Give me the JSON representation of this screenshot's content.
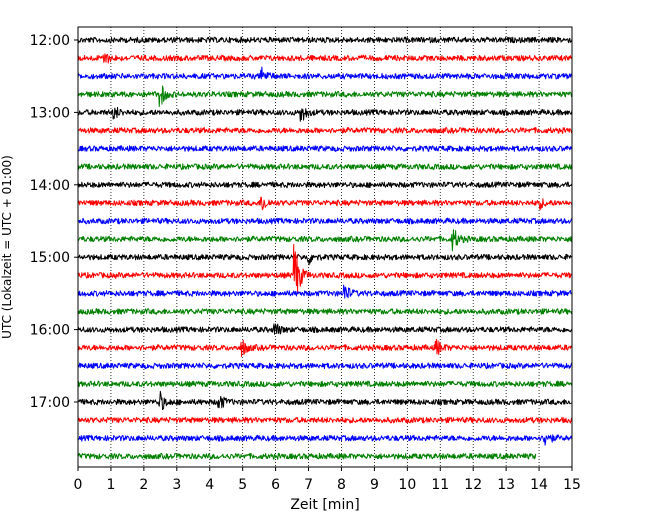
{
  "chart_data": {
    "type": "line",
    "title": "",
    "xlabel": "Zeit  [min]",
    "ylabel": "UTC (Lokalzeit = UTC + 01:00)",
    "xlim": [
      0,
      15
    ],
    "xticks": [
      0,
      1,
      2,
      3,
      4,
      5,
      6,
      7,
      8,
      9,
      10,
      11,
      12,
      13,
      14,
      15
    ],
    "xtick_labels": [
      "0",
      "1",
      "2",
      "3",
      "4",
      "5",
      "6",
      "7",
      "8",
      "9",
      "10",
      "11",
      "12",
      "13",
      "14",
      "15"
    ],
    "ytick_labels": [
      "12:00",
      "13:00",
      "14:00",
      "15:00",
      "16:00",
      "17:00"
    ],
    "grid": "vertical-dotted",
    "legend": "none",
    "colors": [
      "#000000",
      "#ff0000",
      "#0000ff",
      "#008000"
    ],
    "traces": [
      {
        "start": "12:00",
        "events": []
      },
      {
        "start": "12:15",
        "events": [
          {
            "t": 0.8,
            "amp": 0.35
          }
        ]
      },
      {
        "start": "12:30",
        "events": [
          {
            "t": 5.6,
            "amp": 0.4
          }
        ]
      },
      {
        "start": "12:45",
        "events": [
          {
            "t": 2.5,
            "amp": 0.65
          }
        ]
      },
      {
        "start": "13:00",
        "events": [
          {
            "t": 1.1,
            "amp": 0.35
          },
          {
            "t": 6.8,
            "amp": 0.45
          }
        ]
      },
      {
        "start": "13:15",
        "events": []
      },
      {
        "start": "13:30",
        "events": []
      },
      {
        "start": "13:45",
        "events": []
      },
      {
        "start": "14:00",
        "events": []
      },
      {
        "start": "14:15",
        "events": [
          {
            "t": 5.6,
            "amp": 0.45
          },
          {
            "t": 14.0,
            "amp": 0.3
          }
        ]
      },
      {
        "start": "14:30",
        "events": []
      },
      {
        "start": "14:45",
        "events": [
          {
            "t": 11.4,
            "amp": 0.6
          }
        ]
      },
      {
        "start": "15:00",
        "events": [
          {
            "t": 7.0,
            "amp": 0.35
          }
        ]
      },
      {
        "start": "15:15",
        "events": [
          {
            "t": 6.6,
            "amp": 1.7
          }
        ]
      },
      {
        "start": "15:30",
        "events": [
          {
            "t": 8.1,
            "amp": 0.5
          }
        ]
      },
      {
        "start": "15:45",
        "events": []
      },
      {
        "start": "16:00",
        "events": [
          {
            "t": 6.0,
            "amp": 0.35
          }
        ]
      },
      {
        "start": "16:15",
        "events": [
          {
            "t": 5.0,
            "amp": 0.4
          },
          {
            "t": 10.9,
            "amp": 0.4
          }
        ]
      },
      {
        "start": "16:30",
        "events": []
      },
      {
        "start": "16:45",
        "events": []
      },
      {
        "start": "17:00",
        "events": [
          {
            "t": 2.5,
            "amp": 0.5
          },
          {
            "t": 4.3,
            "amp": 0.4
          }
        ]
      },
      {
        "start": "17:15",
        "events": []
      },
      {
        "start": "17:30",
        "events": [
          {
            "t": 14.2,
            "amp": 0.4
          }
        ]
      },
      {
        "start": "17:45",
        "events": [],
        "end_min": 13.9
      }
    ]
  }
}
